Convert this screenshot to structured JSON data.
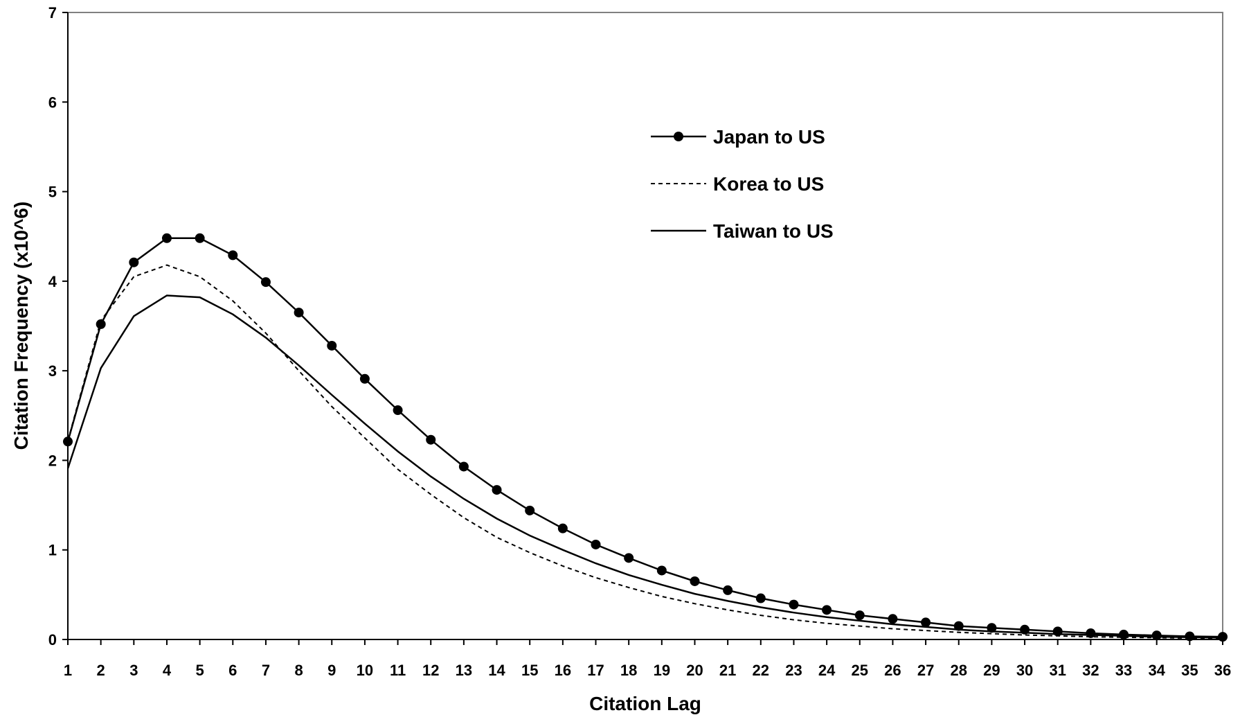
{
  "chart_data": {
    "type": "line",
    "title": "",
    "xlabel": "Citation Lag",
    "ylabel": "Citation Frequency (x10^6)",
    "xlim": [
      1,
      36
    ],
    "ylim": [
      0,
      7
    ],
    "yticks": [
      "0",
      "1",
      "2",
      "3",
      "4",
      "5",
      "6",
      "7"
    ],
    "x": [
      1,
      2,
      3,
      4,
      5,
      6,
      7,
      8,
      9,
      10,
      11,
      12,
      13,
      14,
      15,
      16,
      17,
      18,
      19,
      20,
      21,
      22,
      23,
      24,
      25,
      26,
      27,
      28,
      29,
      30,
      31,
      32,
      33,
      34,
      35,
      36
    ],
    "xtick_labels": [
      "1",
      "2",
      "3",
      "4",
      "5",
      "6",
      "7",
      "8",
      "9",
      "10",
      "11",
      "12",
      "13",
      "14",
      "15",
      "16",
      "17",
      "18",
      "19",
      "20",
      "21",
      "22",
      "23",
      "24",
      "25",
      "26",
      "27",
      "28",
      "29",
      "30",
      "31",
      "32",
      "33",
      "34",
      "35",
      "36"
    ],
    "grid": false,
    "legend_position": "upper-right",
    "series": [
      {
        "name": "Japan to US",
        "style": "solid-markers",
        "color": "#000000",
        "values": [
          2.21,
          3.52,
          4.21,
          4.48,
          4.48,
          4.29,
          3.99,
          3.65,
          3.28,
          2.91,
          2.56,
          2.23,
          1.93,
          1.67,
          1.44,
          1.24,
          1.06,
          0.91,
          0.77,
          0.65,
          0.55,
          0.46,
          0.39,
          0.33,
          0.27,
          0.23,
          0.19,
          0.15,
          0.13,
          0.11,
          0.09,
          0.07,
          0.055,
          0.045,
          0.035,
          0.03
        ]
      },
      {
        "name": "Korea to US",
        "style": "dashed",
        "color": "#000000",
        "values": [
          2.22,
          3.56,
          4.05,
          4.18,
          4.05,
          3.78,
          3.42,
          3.0,
          2.6,
          2.25,
          1.9,
          1.62,
          1.36,
          1.14,
          0.97,
          0.82,
          0.69,
          0.58,
          0.48,
          0.4,
          0.33,
          0.27,
          0.22,
          0.18,
          0.15,
          0.12,
          0.1,
          0.08,
          0.065,
          0.05,
          0.04,
          0.03,
          0.025,
          0.02,
          0.015,
          0.01
        ]
      },
      {
        "name": "Taiwan to US",
        "style": "solid",
        "color": "#000000",
        "values": [
          1.91,
          3.03,
          3.61,
          3.84,
          3.82,
          3.63,
          3.37,
          3.06,
          2.73,
          2.41,
          2.1,
          1.82,
          1.57,
          1.35,
          1.16,
          1.0,
          0.85,
          0.72,
          0.61,
          0.51,
          0.43,
          0.36,
          0.3,
          0.25,
          0.21,
          0.17,
          0.14,
          0.11,
          0.09,
          0.075,
          0.06,
          0.05,
          0.04,
          0.03,
          0.025,
          0.02
        ]
      }
    ]
  }
}
